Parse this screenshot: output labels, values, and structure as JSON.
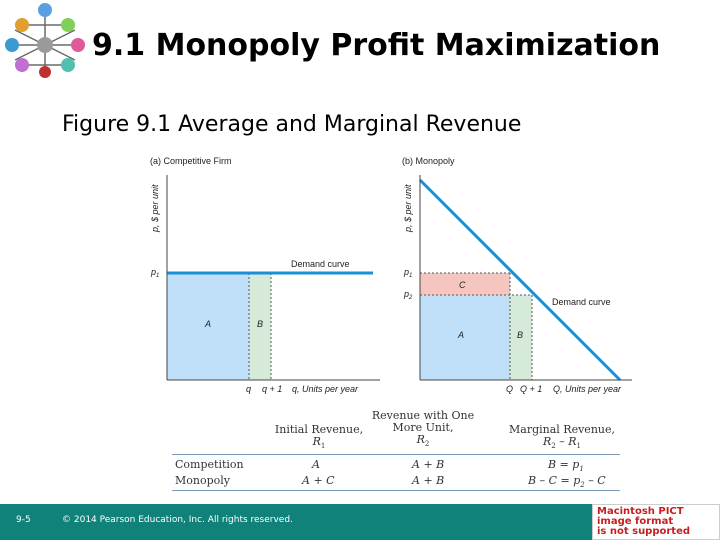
{
  "slide": {
    "title": "9.1 Monopoly Profit Maximization",
    "figure_title": "Figure 9.1  Average and Marginal Revenue"
  },
  "panel_a": {
    "title": "(a) Competitive Firm",
    "ylabel": "p, $ per unit",
    "xlabel": "q, Units per year",
    "curve_label": "Demand curve",
    "p1": "p",
    "p1_sub": "1",
    "area_a": "A",
    "area_b": "B",
    "tick_q": "q",
    "tick_q1": "q + 1"
  },
  "panel_b": {
    "title": "(b) Monopoly",
    "ylabel": "p, $ per unit",
    "xlabel": "Q, Units per year",
    "curve_label": "Demand curve",
    "p1": "p",
    "p1_sub": "1",
    "p2": "p",
    "p2_sub": "2",
    "area_a": "A",
    "area_b": "B",
    "area_c": "C",
    "tick_q": "Q",
    "tick_q1": "Q + 1"
  },
  "table": {
    "headers": {
      "initial": "Initial Revenue,",
      "initial_sym": "R",
      "initial_sub": "1",
      "with_one_l1": "Revenue with One",
      "with_one_l2": "More Unit,",
      "with_one_sym": "R",
      "with_one_sub": "2",
      "marginal": "Marginal Revenue,",
      "marginal_sym": "R",
      "marginal_sub2": "2",
      "marginal_minus": " – R",
      "marginal_sub1": "1"
    },
    "rows": [
      {
        "label": "Competition",
        "initial": "A",
        "with_one": "A + B",
        "marginal": "B = p",
        "marginal_sub": "1",
        "marginal_rest": ""
      },
      {
        "label": "Monopoly",
        "initial": "A + C",
        "with_one": "A + B",
        "marginal": "B – C = p",
        "marginal_sub": "2",
        "marginal_rest": " – C"
      }
    ]
  },
  "footer": {
    "page": "9-5",
    "copyright": "© 2014 Pearson Education, Inc. All rights reserved."
  },
  "pict_notice": {
    "line1": "Macintosh PICT",
    "line2": "image format",
    "line3": "is not supported"
  },
  "colors": {
    "accent": "#11827a",
    "curve": "#1b8fd6",
    "area_a": "#bfe0f8",
    "area_b": "#d6ead9",
    "area_c": "#f5c6c0"
  }
}
